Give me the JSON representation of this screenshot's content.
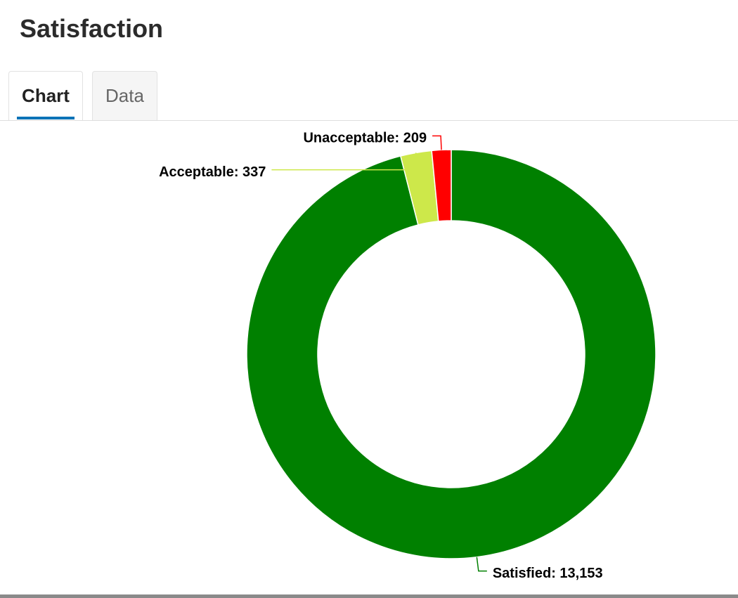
{
  "header": {
    "title": "Satisfaction"
  },
  "tabs": [
    {
      "label": "Chart"
    },
    {
      "label": "Data"
    }
  ],
  "chart_data": {
    "type": "donut",
    "values": [
      13153,
      337,
      209
    ],
    "value_labels": [
      "Satisfied: 13,153",
      "Acceptable: 337",
      "Unacceptable: 209"
    ],
    "colors": [
      "#008000",
      "#cde84a",
      "#ff0000"
    ]
  }
}
